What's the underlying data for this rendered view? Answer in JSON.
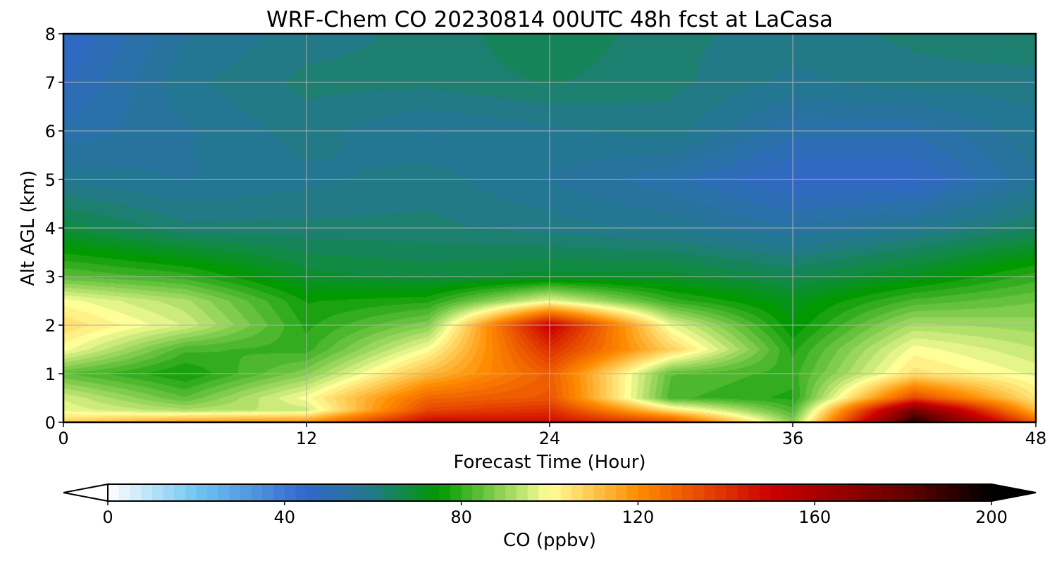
{
  "chart_data": {
    "type": "heatmap",
    "title": "WRF-Chem CO  20230814 00UTC 48h fcst at LaCasa",
    "xlabel": "Forecast Time (Hour)",
    "ylabel": "Alt AGL (km)",
    "x_ticks": [
      "0",
      "12",
      "24",
      "36",
      "48"
    ],
    "y_ticks": [
      "0",
      "1",
      "2",
      "3",
      "4",
      "5",
      "6",
      "7",
      "8"
    ],
    "xlim": [
      0,
      48
    ],
    "ylim": [
      0,
      8
    ],
    "grid": true,
    "colorbar": {
      "label": "CO  (ppbv)",
      "ticks": [
        "0",
        "40",
        "80",
        "120",
        "160",
        "200"
      ],
      "range": [
        0,
        200
      ],
      "extend": "both",
      "colors": [
        {
          "value": 0,
          "color": "#ffffff"
        },
        {
          "value": 20,
          "color": "#6fc6f2"
        },
        {
          "value": 45,
          "color": "#3366cc"
        },
        {
          "value": 60,
          "color": "#217a86"
        },
        {
          "value": 75,
          "color": "#009900"
        },
        {
          "value": 100,
          "color": "#ffff99"
        },
        {
          "value": 120,
          "color": "#ff8c00"
        },
        {
          "value": 150,
          "color": "#cc0000"
        },
        {
          "value": 180,
          "color": "#660000"
        },
        {
          "value": 200,
          "color": "#000000"
        }
      ]
    },
    "x": [
      0,
      6,
      12,
      18,
      24,
      30,
      36,
      42,
      48
    ],
    "y": [
      0,
      0.25,
      0.5,
      1,
      1.5,
      2,
      2.5,
      3,
      4,
      5,
      6,
      7,
      8
    ],
    "z": [
      [
        108,
        118,
        120,
        150,
        148,
        135,
        88,
        195,
        130
      ],
      [
        98,
        92,
        95,
        135,
        140,
        105,
        82,
        175,
        112
      ],
      [
        96,
        84,
        100,
        128,
        132,
        82,
        78,
        135,
        104
      ],
      [
        84,
        76,
        88,
        112,
        130,
        84,
        80,
        105,
        98
      ],
      [
        100,
        82,
        80,
        100,
        140,
        108,
        78,
        100,
        94
      ],
      [
        106,
        96,
        78,
        88,
        152,
        98,
        74,
        92,
        90
      ],
      [
        100,
        92,
        76,
        78,
        98,
        80,
        72,
        82,
        86
      ],
      [
        84,
        80,
        70,
        68,
        70,
        70,
        66,
        72,
        80
      ],
      [
        68,
        62,
        62,
        62,
        60,
        58,
        54,
        58,
        64
      ],
      [
        58,
        56,
        58,
        60,
        56,
        52,
        46,
        46,
        56
      ],
      [
        52,
        56,
        60,
        56,
        58,
        60,
        52,
        52,
        58
      ],
      [
        48,
        58,
        62,
        62,
        64,
        62,
        58,
        60,
        60
      ],
      [
        46,
        56,
        60,
        62,
        66,
        62,
        60,
        62,
        64
      ]
    ]
  }
}
